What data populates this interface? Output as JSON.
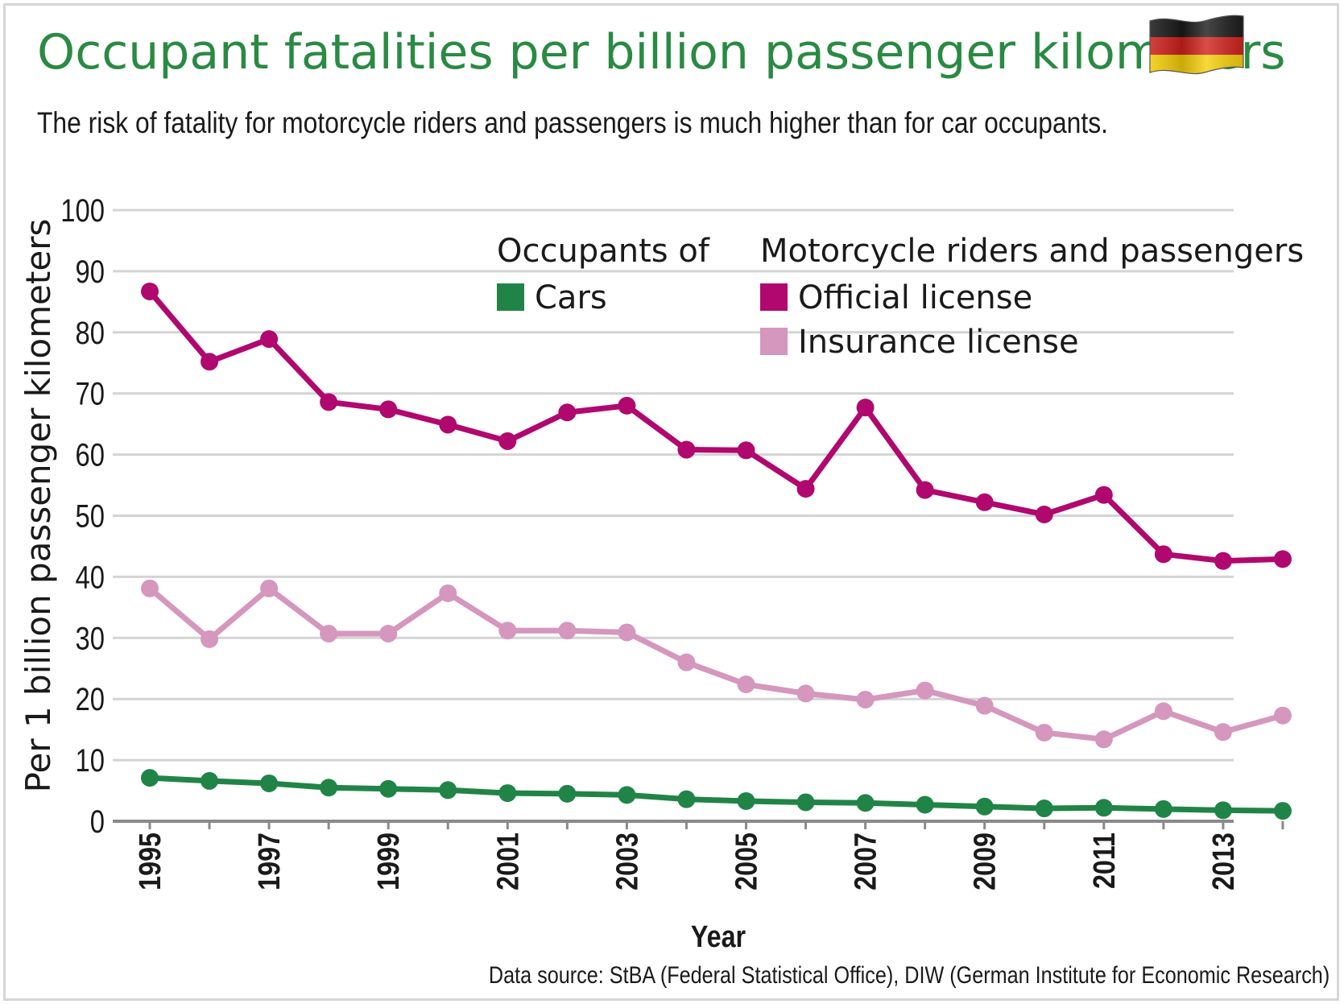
{
  "title": "Occupant fatalities per billion passenger kilometers",
  "subtitle": "The risk of fatality for motorcycle riders and passengers is much higher than for car occupants.",
  "source": "Data source: StBA (Federal Statistical Office), DIW (German Institute for Economic Research)",
  "flag": {
    "icon": "germany-flag-icon",
    "colors": [
      "#1a1a1a",
      "#d0211c",
      "#f6cf0a"
    ]
  },
  "legend": {
    "group1_title": "Occupants of",
    "group2_title": "Motorcycle riders and passengers",
    "items": [
      {
        "label": "Cars",
        "color": "#218447"
      },
      {
        "label": "Official license",
        "color": "#b0086f"
      },
      {
        "label": "Insurance license",
        "color": "#d597bd"
      }
    ]
  },
  "chart_data": {
    "type": "line",
    "title": "Occupant fatalities per billion passenger kilometers",
    "xlabel": "Year",
    "ylabel": "Per 1 billion passenger kilometers",
    "ylim": [
      0,
      100
    ],
    "yticks": [
      0,
      10,
      20,
      30,
      40,
      50,
      60,
      70,
      80,
      90,
      100
    ],
    "x": [
      1995,
      1996,
      1997,
      1998,
      1999,
      2000,
      2001,
      2002,
      2003,
      2004,
      2005,
      2006,
      2007,
      2008,
      2009,
      2010,
      2011,
      2012,
      2013,
      2014
    ],
    "xtick_labels": [
      "1995",
      "1997",
      "1999",
      "2001",
      "2003",
      "2005",
      "2007",
      "2009",
      "2011",
      "2013"
    ],
    "grid": true,
    "series": [
      {
        "name": "Official license",
        "group": "Motorcycle riders and passengers",
        "color": "#b0086f",
        "values": [
          86.7,
          75.2,
          78.9,
          68.6,
          67.4,
          64.9,
          62.2,
          66.9,
          68.0,
          60.8,
          60.7,
          54.4,
          67.7,
          54.2,
          52.2,
          50.2,
          53.4,
          43.7,
          42.6,
          42.9
        ]
      },
      {
        "name": "Insurance license",
        "group": "Motorcycle riders and passengers",
        "color": "#d597bd",
        "values": [
          38.1,
          29.8,
          38.1,
          30.7,
          30.7,
          37.3,
          31.2,
          31.2,
          30.9,
          26.0,
          22.4,
          20.9,
          19.9,
          21.4,
          18.9,
          14.5,
          13.4,
          18.0,
          14.6,
          17.3
        ]
      },
      {
        "name": "Cars",
        "group": "Occupants of",
        "color": "#218447",
        "values": [
          7.1,
          6.6,
          6.2,
          5.5,
          5.3,
          5.1,
          4.6,
          4.5,
          4.3,
          3.6,
          3.3,
          3.1,
          3.0,
          2.7,
          2.4,
          2.1,
          2.2,
          2.0,
          1.8,
          1.7
        ]
      }
    ]
  }
}
